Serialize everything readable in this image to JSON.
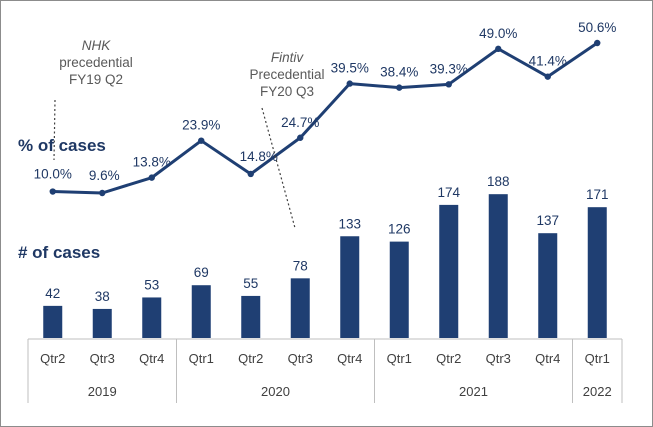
{
  "chart_data": {
    "type": "bar",
    "categories": [
      "Qtr2",
      "Qtr3",
      "Qtr4",
      "Qtr1",
      "Qtr2",
      "Qtr3",
      "Qtr4",
      "Qtr1",
      "Qtr2",
      "Qtr3",
      "Qtr4",
      "Qtr1"
    ],
    "groups": [
      {
        "label": "2019",
        "count": 3
      },
      {
        "label": "2020",
        "count": 4
      },
      {
        "label": "2021",
        "count": 4
      },
      {
        "label": "2022",
        "count": 1
      }
    ],
    "series": [
      {
        "name": "# of cases",
        "type": "bar",
        "color": "#1f3f73",
        "values": [
          42,
          38,
          53,
          69,
          55,
          78,
          133,
          126,
          174,
          188,
          137,
          171
        ],
        "labels": [
          "42",
          "38",
          "53",
          "69",
          "55",
          "78",
          "133",
          "126",
          "174",
          "188",
          "137",
          "171"
        ]
      },
      {
        "name": "% of cases",
        "type": "line",
        "color": "#1f3f73",
        "values": [
          10.0,
          9.6,
          13.8,
          23.9,
          14.8,
          24.7,
          39.5,
          38.4,
          39.3,
          49.0,
          41.4,
          50.6
        ],
        "labels": [
          "10.0%",
          "9.6%",
          "13.8%",
          "23.9%",
          "14.8%",
          "24.7%",
          "39.5%",
          "38.4%",
          "39.3%",
          "49.0%",
          "41.4%",
          "50.6%"
        ]
      }
    ],
    "annotations": [
      {
        "lines": [
          "NHK",
          "precedential",
          "FY19 Q2"
        ],
        "italic_first": true,
        "target_index": 0
      },
      {
        "lines": [
          "Fintiv",
          "Precedential",
          "FY20 Q3"
        ],
        "italic_first": true,
        "target_index": 5
      }
    ],
    "grid": false,
    "legend": "inline labels"
  }
}
